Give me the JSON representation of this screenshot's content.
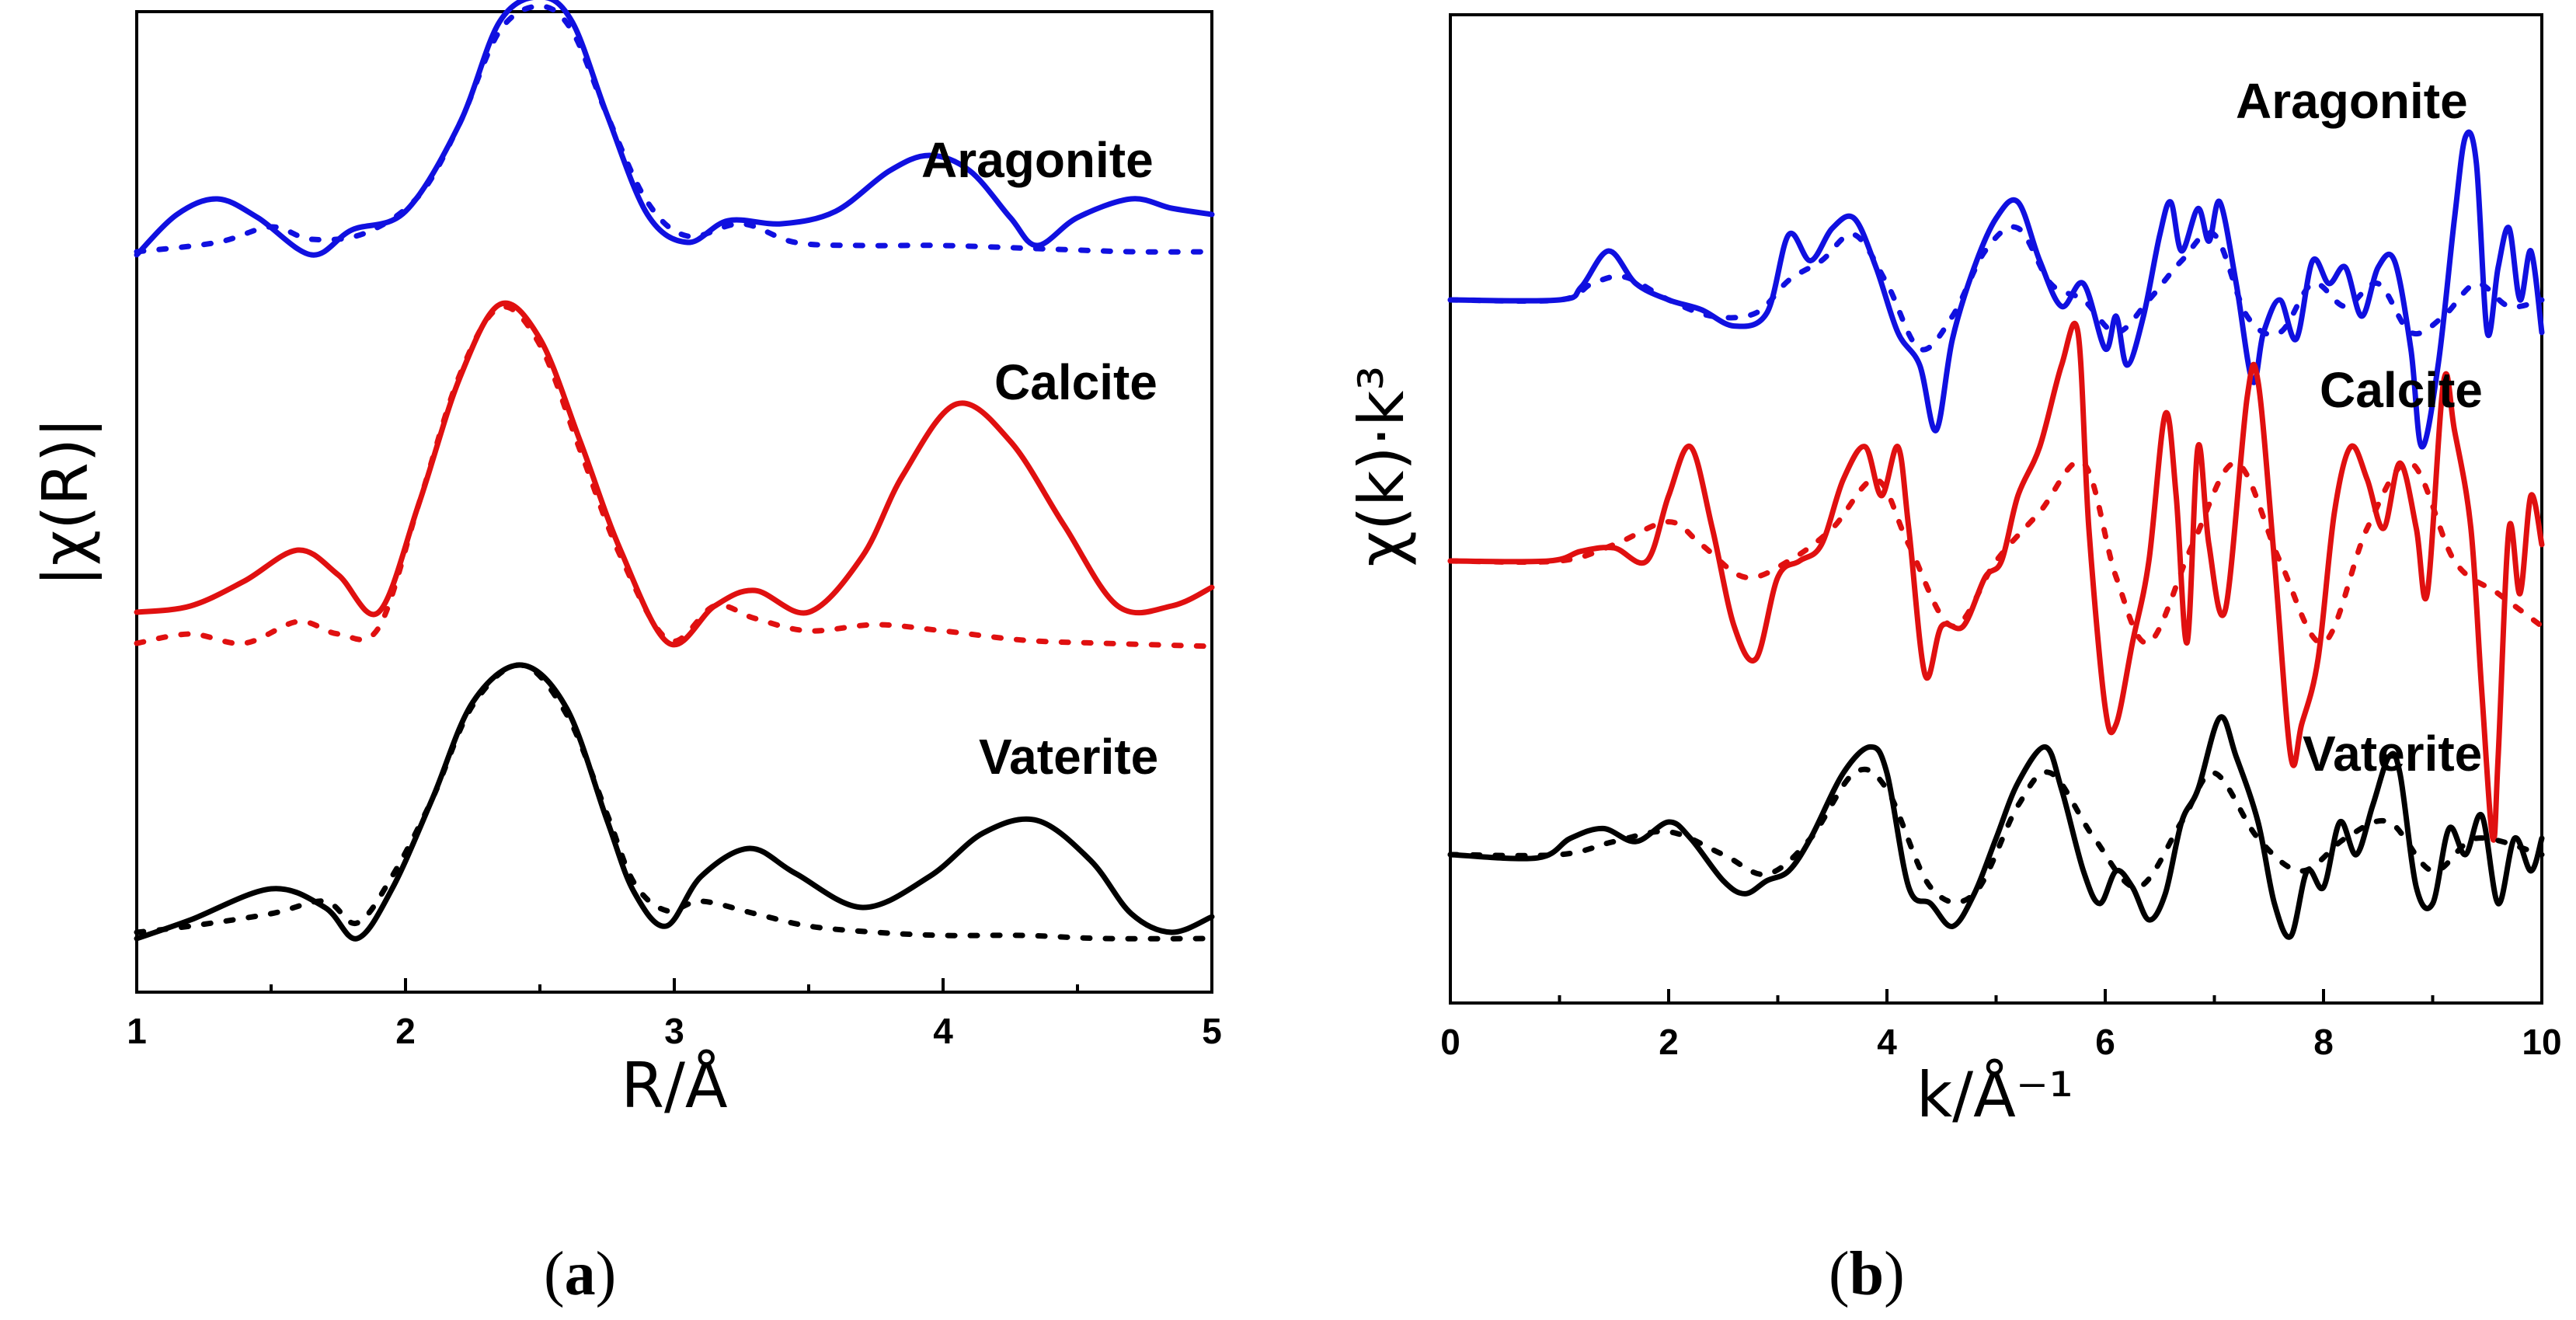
{
  "colors": {
    "Aragonite": "#1010e0",
    "Calcite": "#e01010",
    "Vaterite": "#000000"
  },
  "chart_data": [
    {
      "type": "line",
      "panel_label": "a",
      "xlabel": "R/Å",
      "ylabel": "|χ(R)|",
      "xlim": [
        1,
        5
      ],
      "xticks": [
        1,
        2,
        3,
        4,
        5
      ],
      "xtick_labels": [
        "1",
        "2",
        "3",
        "4",
        "5"
      ],
      "y_ticks_shown": false,
      "y_units": "arbitrary, vertically offset",
      "grid": false,
      "annotations": [
        "Aragonite",
        "Calcite",
        "Vaterite"
      ],
      "line_styles": {
        "solid": "experiment",
        "dotted": "fit"
      },
      "series": [
        {
          "name": "Aragonite",
          "style": "solid",
          "offset": 2.2,
          "x": [
            1.0,
            1.15,
            1.3,
            1.45,
            1.65,
            1.8,
            2.0,
            2.2,
            2.35,
            2.5,
            2.62,
            2.75,
            2.9,
            3.05,
            3.2,
            3.4,
            3.6,
            3.8,
            3.95,
            4.1,
            4.25,
            4.35,
            4.5,
            4.7,
            4.85,
            5.0
          ],
          "y": [
            0.0,
            0.13,
            0.18,
            0.12,
            0.0,
            0.08,
            0.14,
            0.42,
            0.75,
            0.83,
            0.75,
            0.45,
            0.13,
            0.04,
            0.11,
            0.1,
            0.14,
            0.27,
            0.32,
            0.27,
            0.12,
            0.03,
            0.12,
            0.18,
            0.15,
            0.13
          ]
        },
        {
          "name": "Aragonite",
          "style": "dotted",
          "offset": 2.2,
          "x": [
            1.0,
            1.3,
            1.5,
            1.65,
            1.85,
            2.05,
            2.2,
            2.35,
            2.5,
            2.62,
            2.75,
            2.9,
            3.05,
            3.25,
            3.45,
            3.7,
            4.0,
            4.35,
            4.7,
            5.0
          ],
          "y": [
            0.01,
            0.04,
            0.09,
            0.05,
            0.07,
            0.19,
            0.42,
            0.72,
            0.8,
            0.72,
            0.45,
            0.17,
            0.06,
            0.1,
            0.04,
            0.03,
            0.03,
            0.02,
            0.01,
            0.01
          ]
        },
        {
          "name": "Calcite",
          "style": "solid",
          "offset": 1.05,
          "x": [
            1.0,
            1.2,
            1.4,
            1.6,
            1.75,
            1.9,
            2.05,
            2.2,
            2.35,
            2.5,
            2.65,
            2.8,
            2.98,
            3.15,
            3.3,
            3.5,
            3.7,
            3.85,
            4.05,
            4.25,
            4.45,
            4.65,
            4.85,
            5.0
          ],
          "y": [
            0.0,
            0.02,
            0.1,
            0.2,
            0.12,
            0.0,
            0.35,
            0.75,
            0.99,
            0.88,
            0.55,
            0.2,
            -0.1,
            0.02,
            0.07,
            0.0,
            0.18,
            0.44,
            0.67,
            0.55,
            0.28,
            0.02,
            0.02,
            0.08
          ]
        },
        {
          "name": "Calcite",
          "style": "dotted",
          "offset": 1.05,
          "x": [
            1.0,
            1.2,
            1.4,
            1.6,
            1.75,
            1.9,
            2.05,
            2.2,
            2.35,
            2.5,
            2.65,
            2.8,
            2.98,
            3.15,
            3.3,
            3.5,
            3.75,
            4.0,
            4.3,
            4.6,
            5.0
          ],
          "y": [
            -0.1,
            -0.07,
            -0.1,
            -0.03,
            -0.07,
            -0.05,
            0.35,
            0.76,
            0.98,
            0.86,
            0.52,
            0.18,
            -0.09,
            0.02,
            -0.02,
            -0.06,
            -0.04,
            -0.06,
            -0.09,
            -0.1,
            -0.11
          ]
        },
        {
          "name": "Vaterite",
          "style": "solid",
          "offset": 0.0,
          "x": [
            1.0,
            1.2,
            1.5,
            1.7,
            1.82,
            1.95,
            2.1,
            2.25,
            2.43,
            2.6,
            2.75,
            2.85,
            2.97,
            3.1,
            3.28,
            3.45,
            3.7,
            3.95,
            4.15,
            4.35,
            4.55,
            4.7,
            4.85,
            5.0
          ],
          "y": [
            0.0,
            0.06,
            0.16,
            0.1,
            0.0,
            0.16,
            0.45,
            0.76,
            0.88,
            0.74,
            0.38,
            0.15,
            0.04,
            0.2,
            0.29,
            0.21,
            0.1,
            0.2,
            0.34,
            0.38,
            0.25,
            0.08,
            0.02,
            0.07
          ]
        },
        {
          "name": "Vaterite",
          "style": "dotted",
          "offset": 0.0,
          "x": [
            1.0,
            1.2,
            1.5,
            1.7,
            1.82,
            1.95,
            2.1,
            2.25,
            2.43,
            2.6,
            2.75,
            2.85,
            2.97,
            3.1,
            3.3,
            3.5,
            3.75,
            4.0,
            4.3,
            4.6,
            5.0
          ],
          "y": [
            0.02,
            0.04,
            0.08,
            0.12,
            0.05,
            0.2,
            0.45,
            0.75,
            0.88,
            0.72,
            0.4,
            0.18,
            0.09,
            0.12,
            0.08,
            0.04,
            0.02,
            0.01,
            0.01,
            0.0,
            0.0
          ]
        }
      ]
    },
    {
      "type": "line",
      "panel_label": "b",
      "xlabel": "k/Å⁻¹",
      "ylabel": "χ(k)·k³",
      "xlim": [
        0,
        10
      ],
      "xticks": [
        0,
        2,
        4,
        6,
        8,
        10
      ],
      "xtick_labels": [
        "0",
        "2",
        "4",
        "6",
        "8",
        "10"
      ],
      "y_ticks_shown": false,
      "y_units": "arbitrary, vertically offset",
      "grid": false,
      "annotations": [
        "Aragonite",
        "Calcite",
        "Vaterite"
      ],
      "line_styles": {
        "solid": "experiment",
        "dotted": "fit"
      },
      "series": [
        {
          "name": "Aragonite",
          "style": "solid",
          "offset": 1.7,
          "x": [
            0.0,
            1.0,
            1.2,
            1.45,
            1.7,
            2.0,
            2.3,
            2.6,
            2.9,
            3.1,
            3.3,
            3.5,
            3.7,
            3.9,
            4.1,
            4.3,
            4.45,
            4.6,
            4.8,
            5.0,
            5.2,
            5.4,
            5.6,
            5.8,
            6.0,
            6.1,
            6.2,
            6.35,
            6.5,
            6.6,
            6.7,
            6.85,
            6.95,
            7.05,
            7.2,
            7.35,
            7.45,
            7.6,
            7.75,
            7.9,
            8.05,
            8.2,
            8.35,
            8.5,
            8.65,
            8.8,
            8.9,
            9.05,
            9.2,
            9.3,
            9.4,
            9.5,
            9.6,
            9.7,
            9.8,
            9.9,
            10.0
          ],
          "y": [
            0.0,
            0.0,
            0.04,
            0.15,
            0.05,
            0.0,
            -0.03,
            -0.08,
            -0.04,
            0.2,
            0.12,
            0.22,
            0.25,
            0.1,
            -0.1,
            -0.2,
            -0.4,
            -0.12,
            0.1,
            0.25,
            0.3,
            0.12,
            -0.02,
            0.05,
            -0.15,
            -0.05,
            -0.2,
            -0.05,
            0.2,
            0.3,
            0.15,
            0.28,
            0.18,
            0.3,
            0.05,
            -0.25,
            -0.1,
            0.0,
            -0.12,
            0.12,
            0.05,
            0.1,
            -0.05,
            0.1,
            0.12,
            -0.15,
            -0.45,
            -0.2,
            0.25,
            0.5,
            0.42,
            -0.1,
            0.1,
            0.22,
            0.0,
            0.15,
            -0.1
          ]
        },
        {
          "name": "Aragonite",
          "style": "dotted",
          "offset": 1.7,
          "x": [
            0.0,
            1.0,
            1.3,
            1.6,
            2.0,
            2.4,
            2.8,
            3.1,
            3.4,
            3.7,
            4.0,
            4.3,
            4.6,
            4.9,
            5.2,
            5.5,
            5.8,
            6.1,
            6.4,
            6.7,
            7.0,
            7.3,
            7.6,
            7.9,
            8.2,
            8.5,
            8.8,
            9.1,
            9.4,
            9.7,
            10.0
          ],
          "y": [
            0.0,
            0.0,
            0.05,
            0.07,
            0.0,
            -0.05,
            -0.04,
            0.06,
            0.12,
            0.2,
            0.05,
            -0.15,
            -0.05,
            0.15,
            0.22,
            0.05,
            0.0,
            -0.1,
            0.0,
            0.12,
            0.2,
            -0.05,
            -0.1,
            0.05,
            -0.02,
            0.05,
            -0.1,
            -0.05,
            0.05,
            -0.02,
            0.0
          ]
        },
        {
          "name": "Calcite",
          "style": "solid",
          "offset": 0.9,
          "x": [
            0.0,
            0.9,
            1.2,
            1.5,
            1.8,
            2.0,
            2.2,
            2.4,
            2.6,
            2.8,
            3.0,
            3.2,
            3.4,
            3.6,
            3.8,
            3.95,
            4.1,
            4.2,
            4.35,
            4.5,
            4.7,
            4.9,
            5.05,
            5.2,
            5.4,
            5.6,
            5.75,
            5.85,
            6.0,
            6.1,
            6.25,
            6.4,
            6.55,
            6.65,
            6.75,
            6.85,
            6.95,
            7.1,
            7.3,
            7.4,
            7.55,
            7.7,
            7.8,
            7.95,
            8.1,
            8.25,
            8.4,
            8.55,
            8.7,
            8.85,
            8.95,
            9.1,
            9.2,
            9.35,
            9.45,
            9.55,
            9.6,
            9.7,
            9.8,
            9.9,
            10.0
          ],
          "y": [
            0.0,
            0.0,
            0.03,
            0.04,
            0.0,
            0.2,
            0.35,
            0.1,
            -0.2,
            -0.3,
            -0.05,
            0.0,
            0.05,
            0.25,
            0.35,
            0.2,
            0.35,
            0.1,
            -0.35,
            -0.2,
            -0.2,
            -0.05,
            0.0,
            0.2,
            0.35,
            0.6,
            0.7,
            0.1,
            -0.45,
            -0.5,
            -0.25,
            0.0,
            0.45,
            0.2,
            -0.25,
            0.35,
            0.05,
            -0.15,
            0.5,
            0.55,
            0.0,
            -0.6,
            -0.5,
            -0.3,
            0.15,
            0.35,
            0.25,
            0.1,
            0.3,
            0.1,
            -0.1,
            0.55,
            0.4,
            0.1,
            -0.4,
            -0.85,
            -0.6,
            0.1,
            -0.1,
            0.2,
            0.05
          ]
        },
        {
          "name": "Calcite",
          "style": "dotted",
          "offset": 0.9,
          "x": [
            0.0,
            1.0,
            1.5,
            2.0,
            2.3,
            2.7,
            3.1,
            3.5,
            3.9,
            4.2,
            4.6,
            5.0,
            5.4,
            5.8,
            6.1,
            6.4,
            6.8,
            7.2,
            7.6,
            8.0,
            8.4,
            8.8,
            9.2,
            9.6,
            10.0
          ],
          "y": [
            0.0,
            0.0,
            0.05,
            0.12,
            0.05,
            -0.05,
            0.0,
            0.1,
            0.25,
            0.05,
            -0.2,
            0.0,
            0.15,
            0.3,
            -0.05,
            -0.25,
            0.05,
            0.3,
            0.0,
            -0.25,
            0.1,
            0.3,
            0.0,
            -0.1,
            -0.2
          ]
        },
        {
          "name": "Vaterite",
          "style": "solid",
          "offset": 0.0,
          "x": [
            0.0,
            0.8,
            1.1,
            1.4,
            1.7,
            2.0,
            2.2,
            2.5,
            2.7,
            2.9,
            3.1,
            3.3,
            3.6,
            3.85,
            4.0,
            4.2,
            4.4,
            4.6,
            4.8,
            5.0,
            5.2,
            5.45,
            5.6,
            5.8,
            5.95,
            6.1,
            6.25,
            6.4,
            6.55,
            6.7,
            6.85,
            7.05,
            7.2,
            7.4,
            7.55,
            7.7,
            7.85,
            8.0,
            8.15,
            8.3,
            8.45,
            8.6,
            8.7,
            8.85,
            9.0,
            9.15,
            9.3,
            9.45,
            9.6,
            9.75,
            9.9,
            10.0
          ],
          "y": [
            0.0,
            -0.01,
            0.05,
            0.08,
            0.04,
            0.1,
            0.05,
            -0.08,
            -0.12,
            -0.08,
            -0.05,
            0.05,
            0.25,
            0.33,
            0.25,
            -0.1,
            -0.15,
            -0.22,
            -0.12,
            0.05,
            0.22,
            0.33,
            0.2,
            -0.05,
            -0.15,
            -0.05,
            -0.1,
            -0.2,
            -0.12,
            0.1,
            0.2,
            0.42,
            0.3,
            0.1,
            -0.15,
            -0.25,
            -0.05,
            -0.1,
            0.1,
            0.0,
            0.15,
            0.3,
            0.25,
            -0.1,
            -0.15,
            0.08,
            0.0,
            0.12,
            -0.15,
            0.05,
            -0.05,
            0.05
          ]
        },
        {
          "name": "Vaterite",
          "style": "dotted",
          "offset": 0.0,
          "x": [
            0.0,
            1.0,
            1.5,
            2.0,
            2.5,
            2.9,
            3.3,
            3.7,
            4.0,
            4.4,
            4.8,
            5.2,
            5.5,
            5.9,
            6.3,
            6.7,
            7.0,
            7.4,
            7.8,
            8.2,
            8.6,
            9.0,
            9.4,
            10.0
          ],
          "y": [
            0.0,
            0.0,
            0.04,
            0.07,
            0.0,
            -0.06,
            0.05,
            0.25,
            0.2,
            -0.1,
            -0.12,
            0.15,
            0.25,
            0.05,
            -0.1,
            0.1,
            0.25,
            0.05,
            -0.05,
            0.05,
            0.1,
            -0.05,
            0.05,
            0.0
          ]
        }
      ]
    }
  ]
}
